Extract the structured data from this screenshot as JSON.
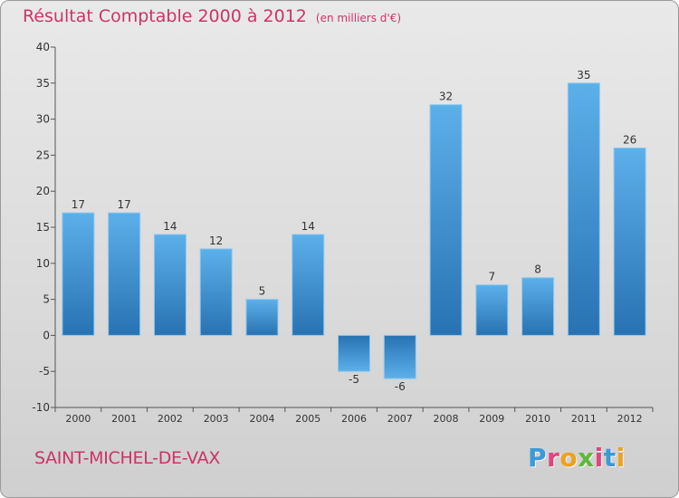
{
  "chart_data": {
    "type": "bar",
    "title": "Résultat Comptable 2000 à 2012",
    "subtitle": "(en milliers d'€)",
    "xlabel": "",
    "ylabel": "",
    "categories": [
      "2000",
      "2001",
      "2002",
      "2003",
      "2004",
      "2005",
      "2006",
      "2007",
      "2008",
      "2009",
      "2010",
      "2011",
      "2012"
    ],
    "values": [
      17,
      17,
      14,
      12,
      5,
      14,
      -5,
      -6,
      32,
      7,
      8,
      35,
      26
    ],
    "ylim": [
      -10,
      40
    ],
    "yticks": [
      -10,
      -5,
      0,
      5,
      10,
      15,
      20,
      25,
      30,
      35,
      40
    ],
    "grid": false,
    "colors": {
      "bar_light": "#5aace6",
      "bar_dark": "#2a77b8",
      "title": "#cc3366"
    }
  },
  "footer": {
    "city": "SAINT-MICHEL-DE-VAX"
  },
  "logo": {
    "text": "Proxiti",
    "letter_colors": [
      "#3a9ad9",
      "#e0457b",
      "#f0a020",
      "#5fb83a",
      "#e0457b",
      "#3a9ad9",
      "#f0a020"
    ]
  }
}
